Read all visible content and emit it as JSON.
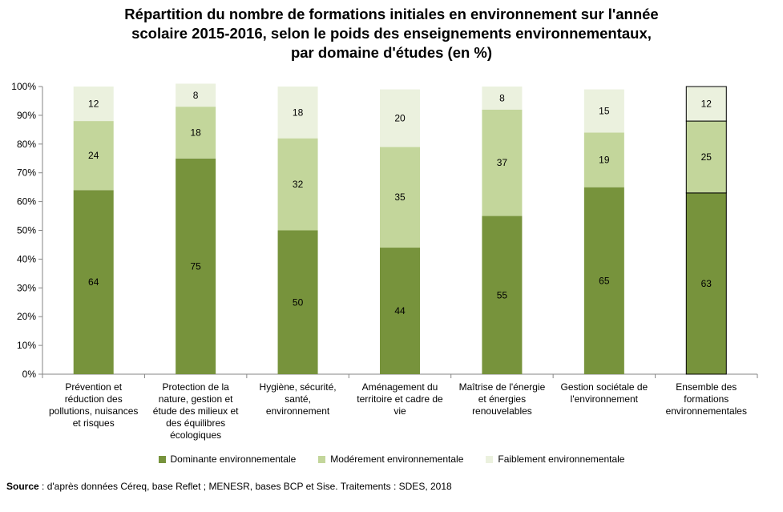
{
  "chart_data": {
    "type": "bar",
    "stacked": true,
    "title_lines": [
      "Répartition du nombre de formations initiales en environnement sur l'année",
      "scolaire 2015-2016, selon le poids des enseignements environnementaux,",
      "par domaine d'études (en %)"
    ],
    "categories": [
      [
        "Prévention et",
        "réduction des",
        "pollutions, nuisances",
        "et risques"
      ],
      [
        "Protection de la",
        "nature, gestion et",
        "étude des milieux et",
        "des équilibres",
        "écologiques"
      ],
      [
        "Hygiène, sécurité,",
        "santé,",
        "environnement"
      ],
      [
        "Aménagement du",
        "territoire et cadre de",
        "vie"
      ],
      [
        "Maîtrise de l'énergie",
        "et énergies",
        "renouvelables"
      ],
      [
        "Gestion sociétale de",
        "l'environnement"
      ],
      [
        "Ensemble des",
        "formations",
        "environnementales"
      ]
    ],
    "series": [
      {
        "name": "Dominante environnementale",
        "color": "#77933c",
        "values": [
          64,
          75,
          50,
          44,
          55,
          65,
          63
        ]
      },
      {
        "name": "Modérement environnementale",
        "color": "#c3d69b",
        "values": [
          24,
          18,
          32,
          35,
          37,
          19,
          25
        ]
      },
      {
        "name": "Faiblement environnementale",
        "color": "#ebf1de",
        "values": [
          12,
          8,
          18,
          20,
          8,
          15,
          12
        ]
      }
    ],
    "ylim": [
      0,
      100
    ],
    "yticks": [
      "0%",
      "10%",
      "20%",
      "30%",
      "40%",
      "50%",
      "60%",
      "70%",
      "80%",
      "90%",
      "100%"
    ],
    "grid": false,
    "legend_position": "bottom",
    "highlighted_category_index": 6
  },
  "source": {
    "label": "Source",
    "text": " : d'après données Céreq, base Reflet ; MENESR, bases BCP et Sise. Traitements : SDES, 2018"
  }
}
